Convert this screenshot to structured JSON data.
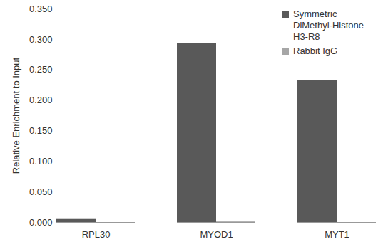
{
  "chart_data": {
    "type": "bar",
    "y_label": "Relative Enrichment to Input",
    "categories": [
      "RPL30",
      "MYOD1",
      "MYT1"
    ],
    "series": [
      {
        "name": "Symmetric DiMethyl-Histone H3-R8",
        "color": "#595959",
        "values": [
          0.005,
          0.293,
          0.233
        ]
      },
      {
        "name": "Rabbit IgG",
        "color": "#a6a6a6",
        "values": [
          0,
          0.001,
          0
        ]
      }
    ],
    "ylim": [
      0,
      0.35
    ],
    "yticks": [
      {
        "value": 0,
        "label": "0.000"
      },
      {
        "value": 0.05,
        "label": "0.050"
      },
      {
        "value": 0.1,
        "label": "0.100"
      },
      {
        "value": 0.15,
        "label": "0.150"
      },
      {
        "value": 0.2,
        "label": "0.200"
      },
      {
        "value": 0.25,
        "label": "0.250"
      },
      {
        "value": 0.3,
        "label": "0.300"
      },
      {
        "value": 0.35,
        "label": "0.350"
      }
    ],
    "grid": false,
    "legend": "top-right"
  }
}
